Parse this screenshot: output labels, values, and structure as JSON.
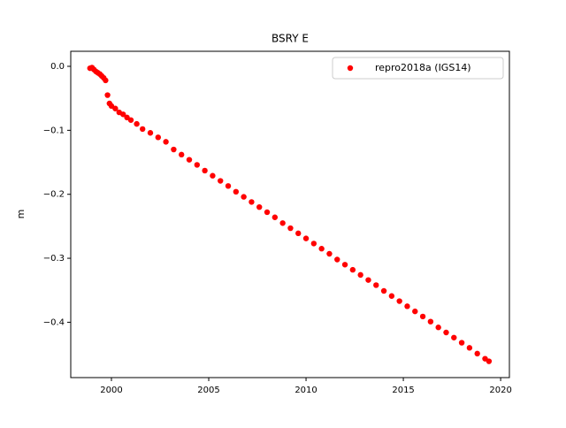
{
  "chart_data": {
    "type": "scatter",
    "title": "BSRY E",
    "y_label": "m",
    "x": [
      1998.9,
      1999.0,
      1999.1,
      1999.2,
      1999.3,
      1999.4,
      1999.5,
      1999.6,
      1999.7,
      1999.8,
      1999.9,
      2000.0,
      2000.2,
      2000.4,
      2000.6,
      2000.8,
      2001.0,
      2001.3,
      2001.6,
      2002.0,
      2002.4,
      2002.8,
      2003.2,
      2003.6,
      2004.0,
      2004.4,
      2004.8,
      2005.2,
      2005.6,
      2006.0,
      2006.4,
      2006.8,
      2007.2,
      2007.6,
      2008.0,
      2008.4,
      2008.8,
      2009.2,
      2009.6,
      2010.0,
      2010.4,
      2010.8,
      2011.2,
      2011.6,
      2012.0,
      2012.4,
      2012.8,
      2013.2,
      2013.6,
      2014.0,
      2014.4,
      2014.8,
      2015.2,
      2015.6,
      2016.0,
      2016.4,
      2016.8,
      2017.2,
      2017.6,
      2018.0,
      2018.4,
      2018.8,
      2019.2,
      2019.4
    ],
    "series": [
      {
        "name": "repro2018a (IGS14)",
        "color": "#ff0000",
        "values": [
          -0.003,
          -0.002,
          -0.005,
          -0.008,
          -0.01,
          -0.012,
          -0.015,
          -0.018,
          -0.022,
          -0.045,
          -0.058,
          -0.062,
          -0.066,
          -0.072,
          -0.075,
          -0.08,
          -0.084,
          -0.09,
          -0.098,
          -0.104,
          -0.111,
          -0.118,
          -0.13,
          -0.138,
          -0.146,
          -0.154,
          -0.163,
          -0.171,
          -0.179,
          -0.187,
          -0.196,
          -0.204,
          -0.212,
          -0.22,
          -0.228,
          -0.236,
          -0.245,
          -0.253,
          -0.261,
          -0.269,
          -0.277,
          -0.285,
          -0.293,
          -0.302,
          -0.31,
          -0.318,
          -0.326,
          -0.334,
          -0.342,
          -0.351,
          -0.359,
          -0.367,
          -0.375,
          -0.383,
          -0.391,
          -0.399,
          -0.408,
          -0.416,
          -0.424,
          -0.432,
          -0.44,
          -0.449,
          -0.457,
          -0.461
        ]
      }
    ],
    "xlim": [
      1997.91,
      2020.45
    ],
    "xticks": [
      2000,
      2005,
      2010,
      2015,
      2020
    ],
    "ylim": [
      -0.4865,
      0.0235
    ],
    "yticks": [
      {
        "value": 0,
        "label": "0.0"
      },
      {
        "value": -0.1,
        "label": "−0.1"
      },
      {
        "value": -0.2,
        "label": "−0.2"
      },
      {
        "value": -0.3,
        "label": "−0.3"
      },
      {
        "value": -0.4,
        "label": "−0.4"
      }
    ],
    "grid": false,
    "legend": "upper right"
  }
}
